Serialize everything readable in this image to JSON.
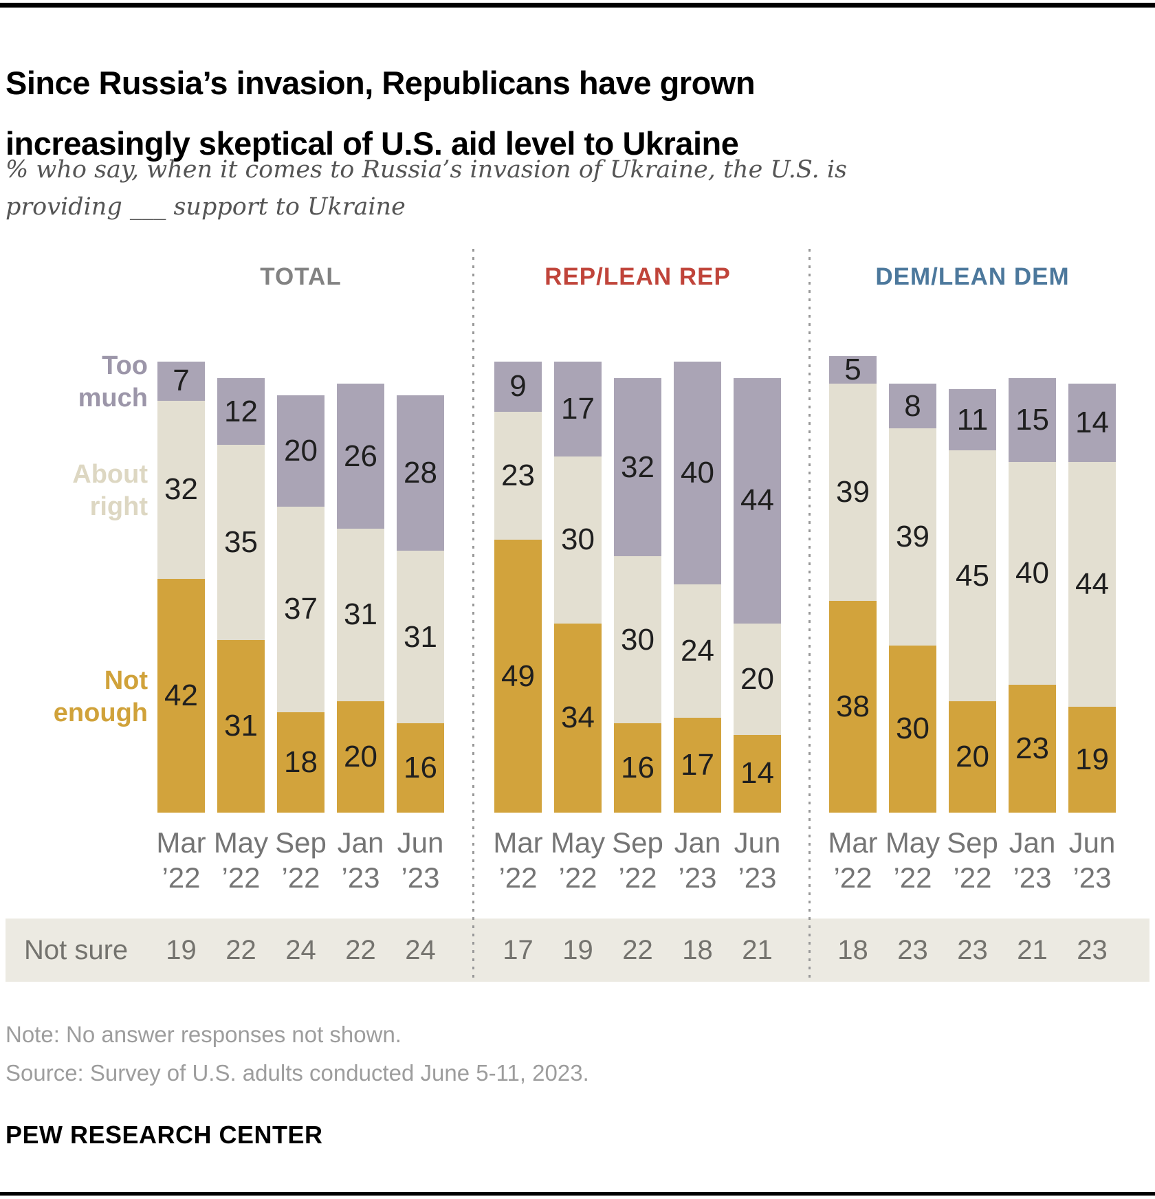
{
  "header": {
    "title": "Since Russia’s invasion, Republicans have grown\nincreasingly skeptical of U.S. aid level to Ukraine",
    "subtitle": "% who say, when it comes to Russia’s invasion of Ukraine, the U.S. is\nproviding ___ support to Ukraine"
  },
  "legend": {
    "too_much": "Too\nmuch",
    "about_right": "About\nright",
    "not_enough": "Not\nenough"
  },
  "not_sure_label": "Not sure",
  "footer": {
    "note": "Note: No answer responses not shown.",
    "source": "Source: Survey of U.S. adults conducted June 5-11, 2023.",
    "brand": "PEW RESEARCH CENTER"
  },
  "colors": {
    "not_enough": "#d2a33c",
    "about_right": "#e3dfd1",
    "too_much": "#aaa4b5",
    "legend_not_enough": "#d0a23a",
    "legend_about_right": "#ddd7c2",
    "legend_too_much": "#9c96a9",
    "value_label": "#1f1f1f",
    "axis_label": "#757575",
    "strip_bg": "#eceae2",
    "strip_text": "#74736e",
    "note_text": "#9d9d9d"
  },
  "chart_data": {
    "type": "bar",
    "stacked": true,
    "unit": "%",
    "grid": false,
    "categories": [
      "Mar\n’22",
      "May\n’22",
      "Sep\n’22",
      "Jan\n’23",
      "Jun\n’23"
    ],
    "segments_bottom_to_top": [
      "Not enough",
      "About right",
      "Too much"
    ],
    "extra_row_label": "Not sure",
    "groups": [
      {
        "label": "TOTAL",
        "color": "#828282",
        "series": [
          {
            "name": "Not enough",
            "values": [
              42,
              31,
              18,
              20,
              16
            ]
          },
          {
            "name": "About right",
            "values": [
              32,
              35,
              37,
              31,
              31
            ]
          },
          {
            "name": "Too much",
            "values": [
              7,
              12,
              20,
              26,
              28
            ]
          }
        ],
        "not_sure": [
          19,
          22,
          24,
          22,
          24
        ]
      },
      {
        "label": "REP/LEAN REP",
        "color": "#c0443a",
        "series": [
          {
            "name": "Not enough",
            "values": [
              49,
              34,
              16,
              17,
              14
            ]
          },
          {
            "name": "About right",
            "values": [
              23,
              30,
              30,
              24,
              20
            ]
          },
          {
            "name": "Too much",
            "values": [
              9,
              17,
              32,
              40,
              44
            ]
          }
        ],
        "not_sure": [
          17,
          19,
          22,
          18,
          21
        ]
      },
      {
        "label": "DEM/LEAN DEM",
        "color": "#4c789c",
        "series": [
          {
            "name": "Not enough",
            "values": [
              38,
              30,
              20,
              23,
              19
            ]
          },
          {
            "name": "About right",
            "values": [
              39,
              39,
              45,
              40,
              44
            ]
          },
          {
            "name": "Too much",
            "values": [
              5,
              8,
              11,
              15,
              14
            ]
          }
        ],
        "not_sure": [
          18,
          23,
          23,
          21,
          23
        ]
      }
    ]
  }
}
